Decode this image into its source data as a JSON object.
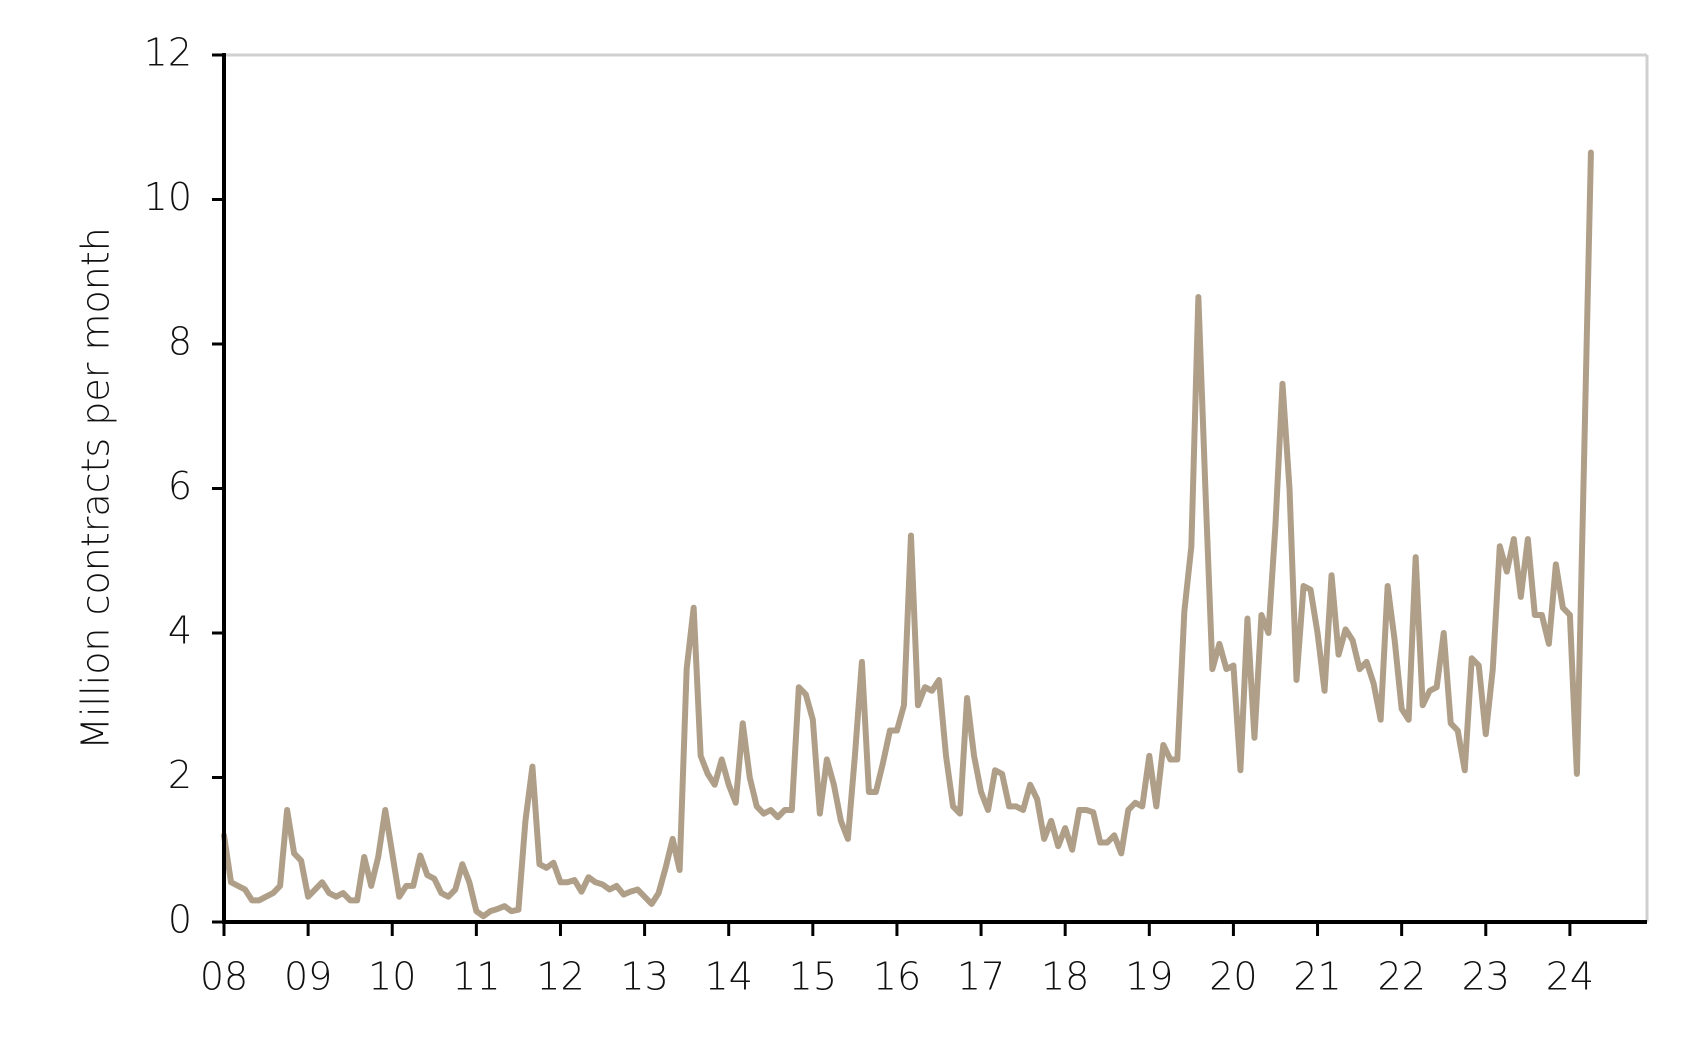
{
  "chart_data": {
    "type": "line",
    "y_label": "Million contracts per month",
    "categories": [
      "08",
      null,
      null,
      null,
      null,
      null,
      null,
      null,
      null,
      null,
      null,
      null,
      "09",
      null,
      null,
      null,
      null,
      null,
      null,
      null,
      null,
      null,
      null,
      null,
      "10",
      null,
      null,
      null,
      null,
      null,
      null,
      null,
      null,
      null,
      null,
      null,
      "11",
      null,
      null,
      null,
      null,
      null,
      null,
      null,
      null,
      null,
      null,
      null,
      "12",
      null,
      null,
      null,
      null,
      null,
      null,
      null,
      null,
      null,
      null,
      null,
      "13",
      null,
      null,
      null,
      null,
      null,
      null,
      null,
      null,
      null,
      null,
      null,
      "14",
      null,
      null,
      null,
      null,
      null,
      null,
      null,
      null,
      null,
      null,
      null,
      "15",
      null,
      null,
      null,
      null,
      null,
      null,
      null,
      null,
      null,
      null,
      null,
      "16",
      null,
      null,
      null,
      null,
      null,
      null,
      null,
      null,
      null,
      null,
      null,
      "17",
      null,
      null,
      null,
      null,
      null,
      null,
      null,
      null,
      null,
      null,
      null,
      "18",
      null,
      null,
      null,
      null,
      null,
      null,
      null,
      null,
      null,
      null,
      null,
      "19",
      null,
      null,
      null,
      null,
      null,
      null,
      null,
      null,
      null,
      null,
      null,
      "20",
      null,
      null,
      null,
      null,
      null,
      null,
      null,
      null,
      null,
      null,
      null,
      "21",
      null,
      null,
      null,
      null,
      null,
      null,
      null,
      null,
      null,
      null,
      null,
      "22",
      null,
      null,
      null,
      null,
      null,
      null,
      null,
      null,
      null,
      null,
      null,
      "23",
      null,
      null,
      null,
      null,
      null,
      null,
      null,
      null,
      null,
      null,
      null,
      "24",
      null,
      null,
      null
    ],
    "color": "#b09f88",
    "values": [
      1.2,
      0.55,
      0.5,
      0.45,
      0.3,
      0.3,
      0.35,
      0.4,
      0.5,
      1.55,
      0.95,
      0.85,
      0.35,
      0.45,
      0.55,
      0.4,
      0.35,
      0.4,
      0.3,
      0.3,
      0.9,
      0.5,
      0.9,
      1.55,
      0.95,
      0.35,
      0.5,
      0.5,
      0.92,
      0.65,
      0.6,
      0.4,
      0.35,
      0.45,
      0.8,
      0.55,
      0.15,
      0.08,
      0.15,
      0.18,
      0.22,
      0.15,
      0.17,
      1.4,
      2.15,
      0.8,
      0.75,
      0.82,
      0.55,
      0.55,
      0.58,
      0.42,
      0.62,
      0.55,
      0.52,
      0.45,
      0.5,
      0.38,
      0.42,
      0.45,
      0.35,
      0.25,
      0.4,
      0.75,
      1.15,
      0.72,
      3.5,
      4.35,
      2.3,
      2.05,
      1.9,
      2.25,
      1.9,
      1.65,
      2.75,
      2.0,
      1.6,
      1.5,
      1.55,
      1.45,
      1.55,
      1.55,
      3.25,
      3.15,
      2.8,
      1.5,
      2.25,
      1.9,
      1.4,
      1.15,
      2.3,
      3.6,
      1.8,
      1.8,
      2.2,
      2.65,
      2.65,
      3.0,
      5.35,
      3.0,
      3.25,
      3.2,
      3.35,
      2.3,
      1.6,
      1.5,
      3.1,
      2.3,
      1.8,
      1.55,
      2.1,
      2.05,
      1.6,
      1.6,
      1.55,
      1.9,
      1.7,
      1.15,
      1.4,
      1.05,
      1.3,
      1.0,
      1.55,
      1.55,
      1.52,
      1.1,
      1.1,
      1.2,
      0.95,
      1.55,
      1.65,
      1.6,
      2.3,
      1.6,
      2.45,
      2.25,
      2.25,
      4.3,
      5.2,
      8.65,
      6.0,
      3.5,
      3.85,
      3.5,
      3.55,
      2.1,
      4.2,
      2.55,
      4.25,
      4.0,
      5.5,
      7.45,
      6.0,
      3.35,
      4.65,
      4.6,
      4.0,
      3.2,
      4.8,
      3.7,
      4.05,
      3.9,
      3.5,
      3.6,
      3.3,
      2.8,
      4.65,
      3.9,
      2.95,
      2.8,
      5.05,
      3.0,
      3.2,
      3.25,
      4.0,
      2.75,
      2.65,
      2.1,
      3.65,
      3.55,
      2.6,
      3.5,
      5.2,
      4.85,
      5.3,
      4.5,
      5.3,
      4.25,
      4.25,
      3.85,
      4.95,
      4.35,
      4.25,
      2.05,
      6.3,
      10.65
    ],
    "ylim": [
      0,
      12
    ],
    "yticks": [
      0,
      2,
      4,
      6,
      8,
      10,
      12
    ],
    "grid": false
  }
}
